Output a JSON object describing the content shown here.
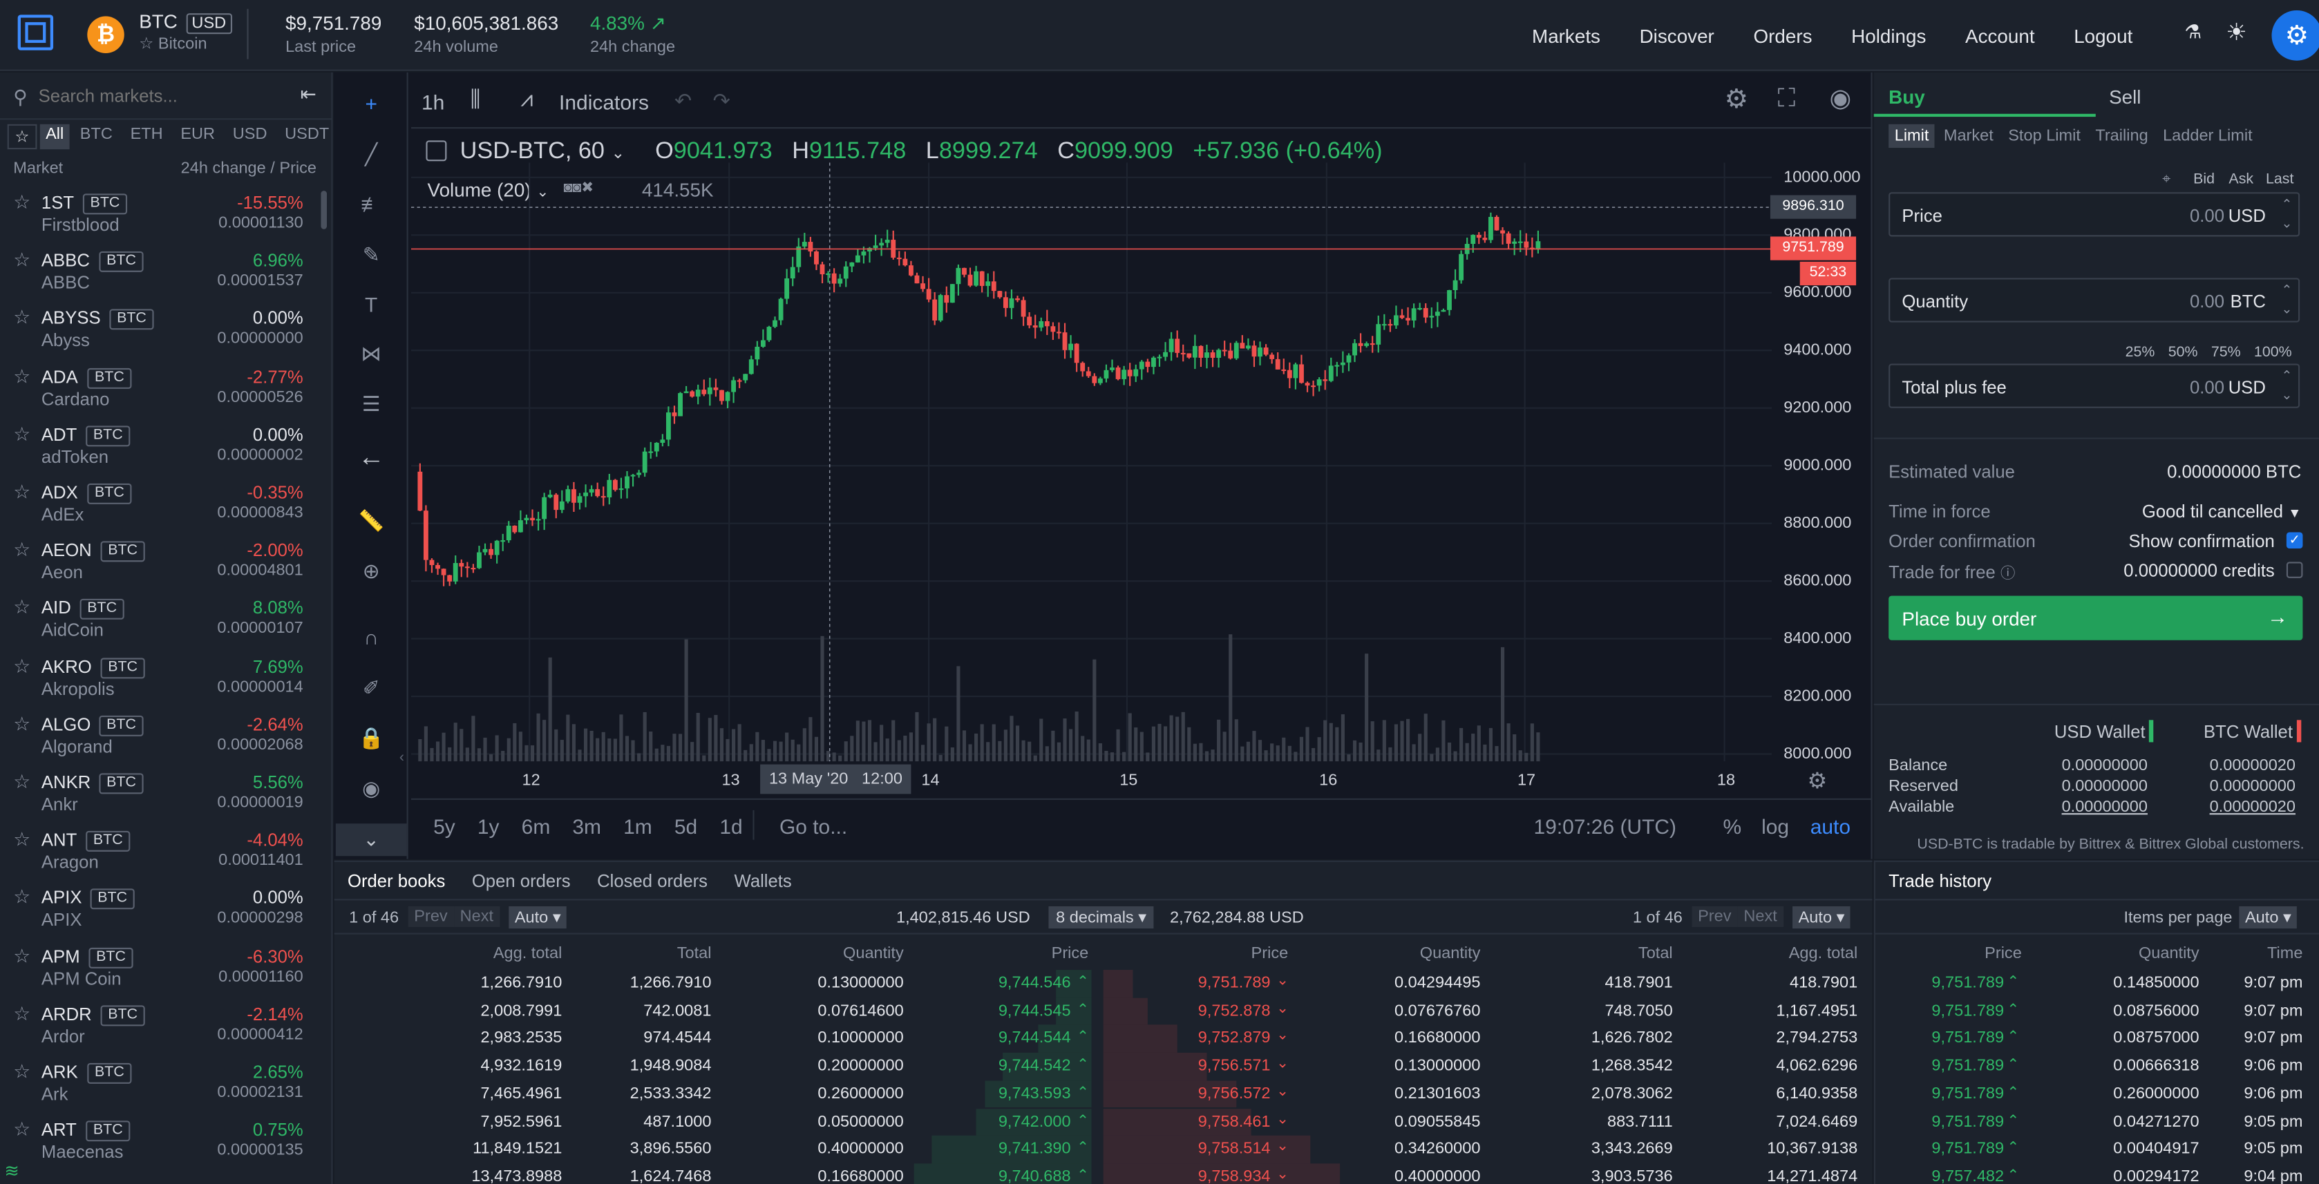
{
  "header": {
    "coin_symbol": "BTC",
    "quote": "USD",
    "coin_name": "Bitcoin",
    "last_price": "$9,751.789",
    "last_price_label": "Last price",
    "volume": "$10,605,381.863",
    "volume_label": "24h volume",
    "change": "4.83%",
    "change_label": "24h change",
    "nav": [
      "Markets",
      "Discover",
      "Orders",
      "Holdings",
      "Account",
      "Logout"
    ]
  },
  "sidebar": {
    "search_placeholder": "Search markets...",
    "filters": [
      "All",
      "BTC",
      "ETH",
      "EUR",
      "USD",
      "USDT"
    ],
    "col_market": "Market",
    "col_change": "24h change / Price",
    "markets": [
      {
        "sym": "1ST",
        "tag": "BTC",
        "name": "Firstblood",
        "change": "-15.55%",
        "price": "0.00001130",
        "dir": "down"
      },
      {
        "sym": "ABBC",
        "tag": "BTC",
        "name": "ABBC",
        "change": "6.96%",
        "price": "0.00001537",
        "dir": "up"
      },
      {
        "sym": "ABYSS",
        "tag": "BTC",
        "name": "Abyss",
        "change": "0.00%",
        "price": "0.00000000",
        "dir": "flat"
      },
      {
        "sym": "ADA",
        "tag": "BTC",
        "name": "Cardano",
        "change": "-2.77%",
        "price": "0.00000526",
        "dir": "down"
      },
      {
        "sym": "ADT",
        "tag": "BTC",
        "name": "adToken",
        "change": "0.00%",
        "price": "0.00000002",
        "dir": "flat"
      },
      {
        "sym": "ADX",
        "tag": "BTC",
        "name": "AdEx",
        "change": "-0.35%",
        "price": "0.00000843",
        "dir": "down"
      },
      {
        "sym": "AEON",
        "tag": "BTC",
        "name": "Aeon",
        "change": "-2.00%",
        "price": "0.00004801",
        "dir": "down"
      },
      {
        "sym": "AID",
        "tag": "BTC",
        "name": "AidCoin",
        "change": "8.08%",
        "price": "0.00000107",
        "dir": "up"
      },
      {
        "sym": "AKRO",
        "tag": "BTC",
        "name": "Akropolis",
        "change": "7.69%",
        "price": "0.00000014",
        "dir": "up"
      },
      {
        "sym": "ALGO",
        "tag": "BTC",
        "name": "Algorand",
        "change": "-2.64%",
        "price": "0.00002068",
        "dir": "down"
      },
      {
        "sym": "ANKR",
        "tag": "BTC",
        "name": "Ankr",
        "change": "5.56%",
        "price": "0.00000019",
        "dir": "up"
      },
      {
        "sym": "ANT",
        "tag": "BTC",
        "name": "Aragon",
        "change": "-4.04%",
        "price": "0.00011401",
        "dir": "down"
      },
      {
        "sym": "APIX",
        "tag": "BTC",
        "name": "APIX",
        "change": "0.00%",
        "price": "0.00000298",
        "dir": "flat"
      },
      {
        "sym": "APM",
        "tag": "BTC",
        "name": "APM Coin",
        "change": "-6.30%",
        "price": "0.00001160",
        "dir": "down"
      },
      {
        "sym": "ARDR",
        "tag": "BTC",
        "name": "Ardor",
        "change": "-2.14%",
        "price": "0.00000412",
        "dir": "down"
      },
      {
        "sym": "ARK",
        "tag": "BTC",
        "name": "Ark",
        "change": "2.65%",
        "price": "0.00002131",
        "dir": "up"
      },
      {
        "sym": "ART",
        "tag": "BTC",
        "name": "Maecenas",
        "change": "0.75%",
        "price": "0.00000135",
        "dir": "up"
      }
    ]
  },
  "chart_toolbar": {
    "interval": "1h",
    "indicators": "Indicators"
  },
  "chart": {
    "symbol": "USD-BTC, 60",
    "o_label": "O",
    "o": "9041.973",
    "h_label": "H",
    "h": "9115.748",
    "l_label": "L",
    "l": "8999.274",
    "c_label": "C",
    "c": "9099.909",
    "chg": "+57.936 (+0.64%)",
    "volume_label": "Volume (20)",
    "volume_value": "414.55K",
    "price_badge": "9751.789",
    "crosshair_badge": "9896.310",
    "countdown": "52:33",
    "crosshair_date": "13 May '20",
    "crosshair_time": "12:00",
    "y_ticks": [
      "10000.000",
      "9800.000",
      "9600.000",
      "9400.000",
      "9200.000",
      "9000.000",
      "8800.000",
      "8600.000",
      "8400.000",
      "8200.000",
      "8000.000"
    ],
    "x_ticks": [
      "12",
      "13",
      "14",
      "15",
      "16",
      "17",
      "18"
    ]
  },
  "chart_bottom": {
    "ranges": [
      "5y",
      "1y",
      "6m",
      "3m",
      "1m",
      "5d",
      "1d"
    ],
    "goto": "Go to...",
    "clock": "19:07:26 (UTC)",
    "pct": "%",
    "log": "log",
    "auto": "auto"
  },
  "chart_data": {
    "type": "candlestick",
    "title": "USD-BTC, 60",
    "x_range": [
      "11 May",
      "18 May"
    ],
    "ylim": [
      8000,
      10000
    ],
    "last_price": 9751.789,
    "anchors": [
      [
        0,
        8980
      ],
      [
        2,
        8700
      ],
      [
        5,
        8620
      ],
      [
        10,
        8660
      ],
      [
        16,
        8780
      ],
      [
        22,
        8860
      ],
      [
        28,
        8900
      ],
      [
        34,
        8920
      ],
      [
        38,
        9000
      ],
      [
        42,
        9120
      ],
      [
        46,
        9260
      ],
      [
        52,
        9250
      ],
      [
        56,
        9350
      ],
      [
        60,
        9450
      ],
      [
        63,
        9650
      ],
      [
        66,
        9780
      ],
      [
        70,
        9650
      ],
      [
        74,
        9680
      ],
      [
        80,
        9780
      ],
      [
        84,
        9680
      ],
      [
        88,
        9520
      ],
      [
        92,
        9680
      ],
      [
        98,
        9600
      ],
      [
        104,
        9520
      ],
      [
        110,
        9420
      ],
      [
        116,
        9300
      ],
      [
        122,
        9350
      ],
      [
        128,
        9420
      ],
      [
        134,
        9400
      ],
      [
        140,
        9410
      ],
      [
        146,
        9350
      ],
      [
        152,
        9300
      ],
      [
        158,
        9380
      ],
      [
        164,
        9480
      ],
      [
        170,
        9520
      ],
      [
        174,
        9520
      ],
      [
        178,
        9760
      ],
      [
        182,
        9830
      ],
      [
        186,
        9760
      ],
      [
        190,
        9752
      ]
    ]
  },
  "trade_panel": {
    "tabs": [
      "Buy",
      "Sell"
    ],
    "types": [
      "Limit",
      "Market",
      "Stop Limit",
      "Trailing",
      "Ladder Limit"
    ],
    "bid": "Bid",
    "ask": "Ask",
    "last": "Last",
    "price_label": "Price",
    "price_value": "0.00",
    "price_unit": "USD",
    "qty_label": "Quantity",
    "qty_value": "0.00",
    "qty_unit": "BTC",
    "pcts": [
      "25%",
      "50%",
      "75%",
      "100%"
    ],
    "total_label": "Total plus fee",
    "total_value": "0.00",
    "total_unit": "USD",
    "est_label": "Estimated value",
    "est_value": "0.00000000 BTC",
    "tif_label": "Time in force",
    "tif_value": "Good til cancelled",
    "conf_label": "Order confirmation",
    "conf_value": "Show confirmation",
    "free_label": "Trade for free",
    "free_value": "0.00000000 credits",
    "place": "Place buy order",
    "usd_wallet": "USD Wallet",
    "btc_wallet": "BTC Wallet",
    "balance_label": "Balance",
    "reserved_label": "Reserved",
    "available_label": "Available",
    "usd_balance": "0.00000000",
    "usd_reserved": "0.00000000",
    "usd_available": "0.00000000",
    "btc_balance": "0.00000020",
    "btc_reserved": "0.00000000",
    "btc_available": "0.00000020",
    "note": "USD-BTC is tradable by Bittrex & Bittrex Global customers."
  },
  "bottom_tabs": [
    "Order books",
    "Open orders",
    "Closed orders",
    "Wallets"
  ],
  "orderbook": {
    "page": "1 of 46",
    "prev": "Prev",
    "next": "Next",
    "auto": "Auto",
    "bid_total": "1,402,815.46 USD",
    "decimals": "8 decimals",
    "ask_total": "2,762,284.88 USD",
    "page2": "1 of 46",
    "bid_headers": [
      "Agg. total",
      "Total",
      "Quantity",
      "Price"
    ],
    "ask_headers": [
      "Price",
      "Quantity",
      "Total",
      "Agg. total"
    ],
    "bids": [
      [
        "1,266.7910",
        "1,266.7910",
        "0.13000000",
        "9,744.546"
      ],
      [
        "2,008.7991",
        "742.0081",
        "0.07614600",
        "9,744.545"
      ],
      [
        "2,983.2535",
        "974.4544",
        "0.10000000",
        "9,744.544"
      ],
      [
        "4,932.1619",
        "1,948.9084",
        "0.20000000",
        "9,744.542"
      ],
      [
        "7,465.4961",
        "2,533.3342",
        "0.26000000",
        "9,743.593"
      ],
      [
        "7,952.5961",
        "487.1000",
        "0.05000000",
        "9,742.000"
      ],
      [
        "11,849.1521",
        "3,896.5560",
        "0.40000000",
        "9,741.390"
      ],
      [
        "13,473.8988",
        "1,624.7468",
        "0.16680000",
        "9,740.688"
      ]
    ],
    "asks": [
      [
        "9,751.789",
        "0.04294495",
        "418.7901",
        "418.7901"
      ],
      [
        "9,752.878",
        "0.07676760",
        "748.7050",
        "1,167.4951"
      ],
      [
        "9,752.879",
        "0.16680000",
        "1,626.7802",
        "2,794.2753"
      ],
      [
        "9,756.571",
        "0.13000000",
        "1,268.3542",
        "4,062.6296"
      ],
      [
        "9,756.572",
        "0.21301603",
        "2,078.3062",
        "6,140.9358"
      ],
      [
        "9,758.461",
        "0.09055845",
        "883.7111",
        "7,024.6469"
      ],
      [
        "9,758.514",
        "0.34260000",
        "3,343.2669",
        "10,367.9138"
      ],
      [
        "9,758.934",
        "0.40000000",
        "3,903.5736",
        "14,271.4874"
      ]
    ]
  },
  "trade_history": {
    "title": "Trade history",
    "ipp": "Items per page",
    "auto": "Auto",
    "headers": [
      "Price",
      "Quantity",
      "Time"
    ],
    "rows": [
      [
        "9,751.789",
        "0.14850000",
        "9:07 pm"
      ],
      [
        "9,751.789",
        "0.08756000",
        "9:07 pm"
      ],
      [
        "9,751.789",
        "0.08757000",
        "9:07 pm"
      ],
      [
        "9,751.789",
        "0.00666318",
        "9:06 pm"
      ],
      [
        "9,751.789",
        "0.26000000",
        "9:06 pm"
      ],
      [
        "9,751.789",
        "0.04271270",
        "9:05 pm"
      ],
      [
        "9,751.789",
        "0.00404917",
        "9:05 pm"
      ],
      [
        "9,757.482",
        "0.00294172",
        "9:04 pm"
      ]
    ]
  },
  "colors": {
    "up": "#2fb867",
    "down": "#f0514e",
    "accent": "#1a73e8",
    "bg": "#161b24",
    "panel": "#1c222c"
  }
}
